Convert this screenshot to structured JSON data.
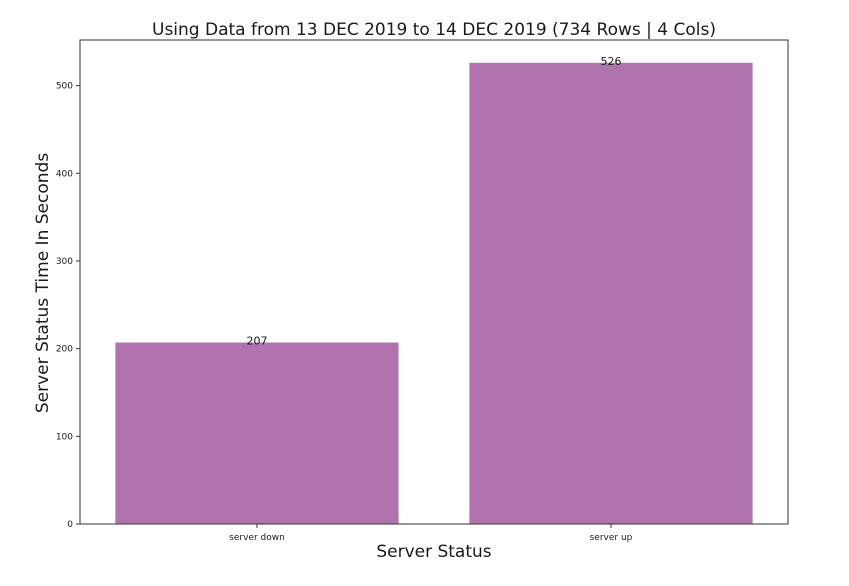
{
  "chart_data": {
    "type": "bar",
    "title": "Using Data from 13 DEC 2019 to 14 DEC 2019 (734 Rows | 4 Cols)",
    "xlabel": "Server Status",
    "ylabel": "Server Status Time In Seconds",
    "categories": [
      "server down",
      "server up"
    ],
    "values": [
      207,
      526
    ],
    "value_labels": [
      "207",
      "526"
    ],
    "ylim": [
      0,
      552
    ],
    "yticks": [
      0,
      100,
      200,
      300,
      400,
      500
    ],
    "grid": false,
    "legend": "none",
    "bar_color": "#b073b0"
  }
}
